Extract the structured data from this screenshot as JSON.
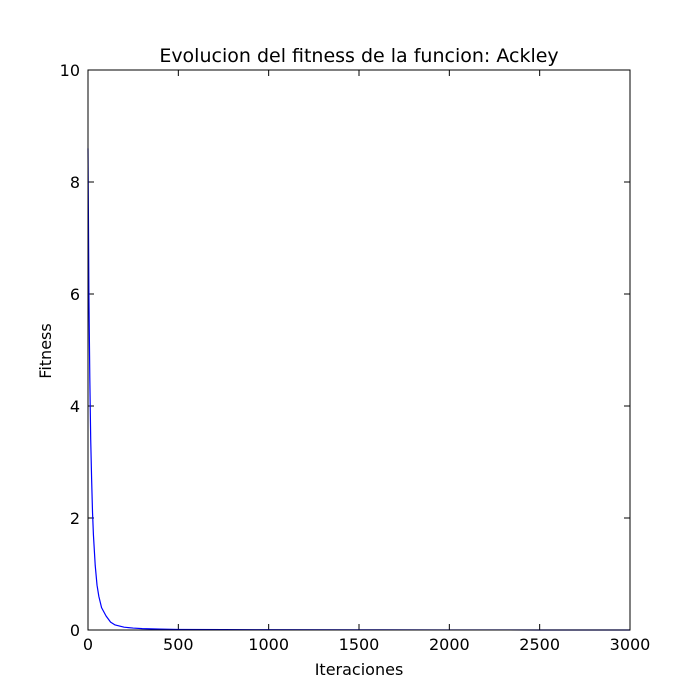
{
  "chart_data": {
    "type": "line",
    "title": "Evolucion del fitness de la funcion: Ackley",
    "xlabel": "Iteraciones",
    "ylabel": "Fitness",
    "xlim": [
      0,
      3000
    ],
    "ylim": [
      0,
      10
    ],
    "xticks": [
      0,
      500,
      1000,
      1500,
      2000,
      2500,
      3000
    ],
    "yticks": [
      0,
      2,
      4,
      6,
      8,
      10
    ],
    "grid": false,
    "colors": {
      "line": "#0000ff",
      "axes": "#000000",
      "background": "#ffffff"
    },
    "series": [
      {
        "name": "fitness",
        "x": [
          0,
          5,
          10,
          15,
          20,
          25,
          30,
          40,
          50,
          60,
          75,
          100,
          125,
          150,
          200,
          250,
          300,
          400,
          500,
          750,
          1000,
          1500,
          2000,
          2500,
          3000
        ],
        "y": [
          8.6,
          6.0,
          4.5,
          3.4,
          2.7,
          2.1,
          1.7,
          1.15,
          0.8,
          0.6,
          0.4,
          0.25,
          0.14,
          0.09,
          0.05,
          0.035,
          0.025,
          0.015,
          0.01,
          0.006,
          0.004,
          0.002,
          0.001,
          0.0005,
          0.0003
        ]
      }
    ]
  }
}
